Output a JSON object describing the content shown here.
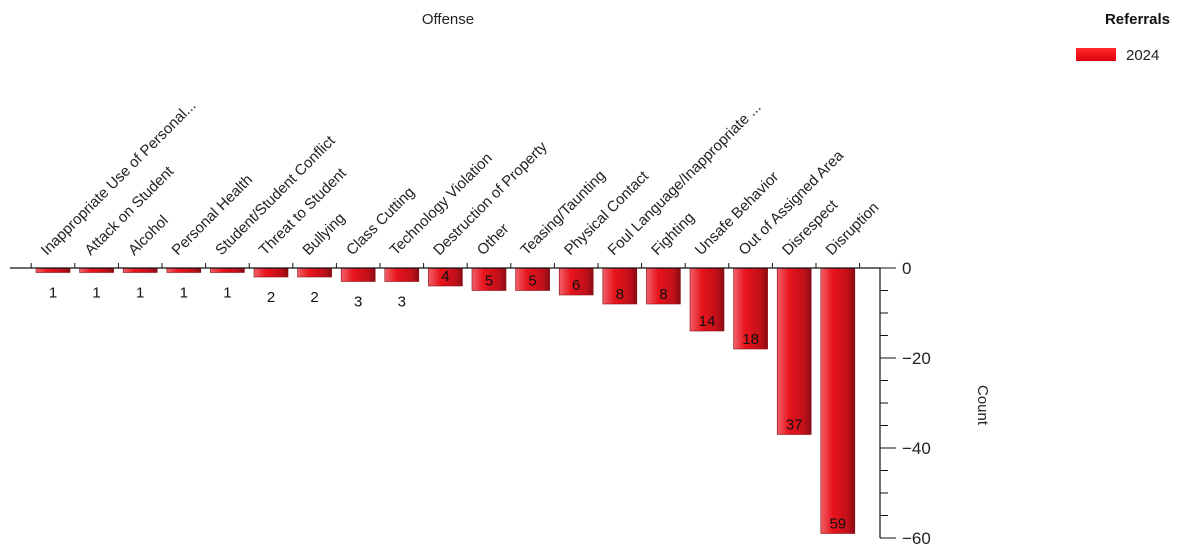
{
  "chart_data": {
    "type": "bar",
    "title": "",
    "xlabel": "Offense",
    "ylabel": "Count",
    "categories": [
      "Inappropriate Use of Personal...",
      "Attack on Student",
      "Alcohol",
      "Personal Health",
      "Student/Student Conflict",
      "Threat to Student",
      "Bullying",
      "Class Cutting",
      "Technology Violation",
      "Destruction of Property",
      "Other",
      "Teasing/Taunting",
      "Physical Contact",
      "Foul Language/Inappropriate ...",
      "Fighting",
      "Unsafe Behavior",
      "Out of Assigned Area",
      "Disrespect",
      "Disruption"
    ],
    "series": [
      {
        "name": "2024",
        "values": [
          1,
          1,
          1,
          1,
          1,
          2,
          2,
          3,
          3,
          4,
          5,
          5,
          6,
          8,
          8,
          14,
          18,
          37,
          59
        ]
      }
    ],
    "value_labels": [
      "1",
      "1",
      "1",
      "1",
      "1",
      "2",
      "2",
      "3",
      "3",
      "4",
      "5",
      "5",
      "6",
      "8",
      "8",
      "14",
      "18",
      "37",
      "59"
    ],
    "y_ticks": [
      "0",
      "20",
      "40",
      "60"
    ],
    "ylim": [
      0,
      60
    ],
    "y_axis_reversed": true,
    "y_axis_position": "right",
    "x_axis_position": "top",
    "grid": false,
    "legend": {
      "title": "Referrals",
      "position": "top-right"
    },
    "colors": {
      "bar": "#e8141c",
      "bar_dark": "#9c1014"
    }
  }
}
